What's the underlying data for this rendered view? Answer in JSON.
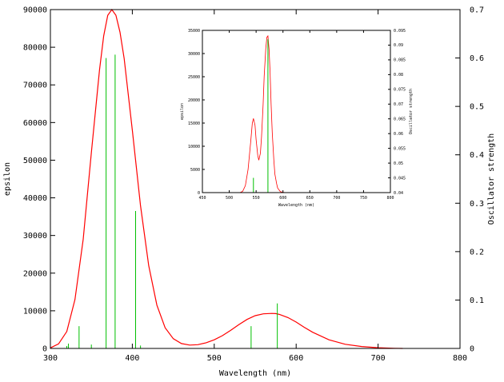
{
  "chart_data": [
    {
      "type": "line",
      "xlabel": "Wavelength (nm)",
      "ylabel": "epsilon",
      "y2label": "Oscillator strength",
      "xlim": [
        300,
        800
      ],
      "ylim": [
        0,
        90000
      ],
      "y2lim": [
        0,
        0.7
      ],
      "xticks": [
        300,
        400,
        500,
        600,
        700,
        800
      ],
      "yticks": [
        0,
        10000,
        20000,
        30000,
        40000,
        50000,
        60000,
        70000,
        80000,
        90000
      ],
      "y2ticks": [
        0,
        0.1,
        0.2,
        0.3,
        0.4,
        0.5,
        0.6,
        0.7
      ],
      "colors": {
        "curve": "#ff0000",
        "sticks": "#00c000",
        "axes": "#000000"
      },
      "series": [
        {
          "style": "line",
          "axis": "y",
          "x": [
            300,
            310,
            320,
            330,
            340,
            350,
            360,
            365,
            370,
            375,
            380,
            385,
            390,
            400,
            410,
            420,
            430,
            440,
            450,
            460,
            470,
            480,
            490,
            500,
            510,
            520,
            530,
            540,
            550,
            560,
            570,
            575,
            580,
            590,
            600,
            610,
            620,
            640,
            660,
            680,
            700,
            720,
            730
          ],
          "y": [
            150,
            1200,
            4500,
            13000,
            29000,
            52000,
            74000,
            83000,
            88500,
            90000,
            88500,
            84000,
            77000,
            58000,
            38000,
            22000,
            11500,
            5500,
            2600,
            1300,
            900,
            1000,
            1500,
            2300,
            3400,
            4800,
            6300,
            7700,
            8700,
            9200,
            9300,
            9250,
            9000,
            8200,
            7000,
            5600,
            4300,
            2300,
            1100,
            500,
            200,
            50,
            0
          ]
        },
        {
          "style": "sticks",
          "axis": "y2",
          "x": [
            320,
            322,
            335,
            350,
            368,
            379,
            404,
            410,
            545,
            577
          ],
          "y": [
            0.005,
            0.01,
            0.046,
            0.008,
            0.6,
            0.607,
            0.284,
            0.006,
            0.046,
            0.093
          ]
        }
      ]
    },
    {
      "type": "line",
      "xlabel": "Wavelength (nm)",
      "ylabel": "epsilon",
      "y2label": "Oscillator strength",
      "xlim": [
        450,
        800
      ],
      "ylim": [
        0,
        35000
      ],
      "y2lim": [
        0.04,
        0.095
      ],
      "xticks": [
        450,
        500,
        550,
        600,
        650,
        700,
        750,
        800
      ],
      "yticks": [
        0,
        5000,
        10000,
        15000,
        20000,
        25000,
        30000,
        35000
      ],
      "y2ticks": [
        0.04,
        0.045,
        0.05,
        0.055,
        0.06,
        0.065,
        0.07,
        0.075,
        0.08,
        0.085,
        0.09,
        0.095
      ],
      "colors": {
        "curve": "#ff0000",
        "sticks": "#00c000",
        "axes": "#000000"
      },
      "series": [
        {
          "style": "line",
          "axis": "y",
          "x": [
            520,
            525,
            530,
            535,
            540,
            543,
            545,
            548,
            550,
            553,
            555,
            558,
            560,
            563,
            565,
            568,
            570,
            572,
            574,
            576,
            578,
            580,
            583,
            585,
            588,
            590,
            595,
            600,
            605
          ],
          "y": [
            0,
            300,
            1500,
            5000,
            11000,
            15000,
            16000,
            14500,
            11500,
            8000,
            7000,
            8500,
            12000,
            19000,
            25000,
            31000,
            33500,
            33800,
            31000,
            26000,
            19000,
            13000,
            7000,
            4000,
            2000,
            1000,
            200,
            50,
            0
          ]
        },
        {
          "style": "sticks",
          "axis": "y2",
          "x": [
            545,
            572
          ],
          "y": [
            0.045,
            0.092
          ]
        }
      ]
    }
  ]
}
